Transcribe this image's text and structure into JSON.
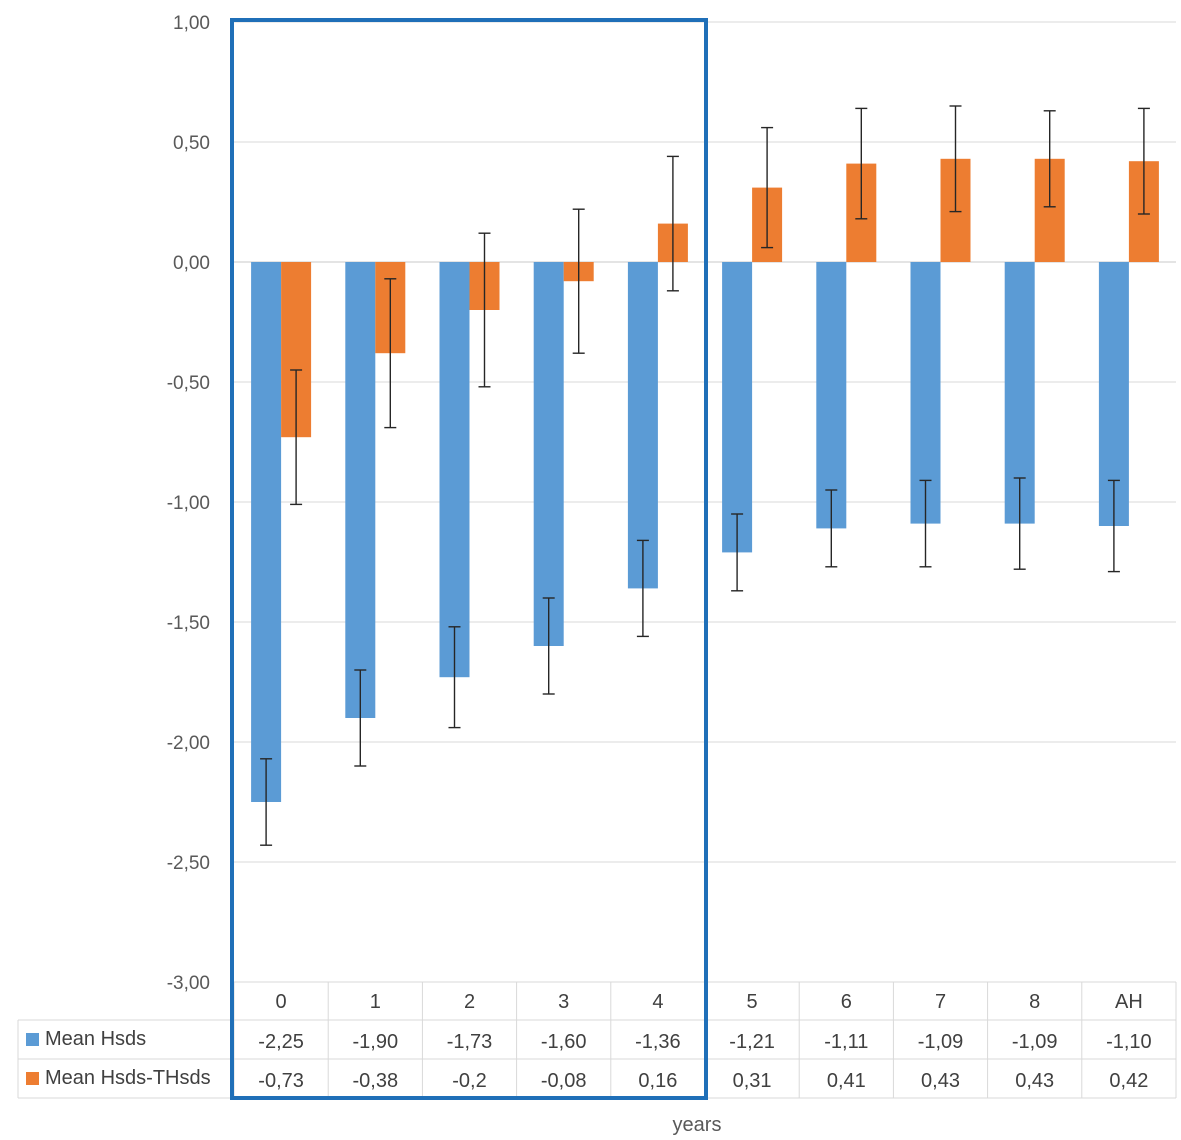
{
  "chart_data": {
    "type": "bar",
    "title": "",
    "xlabel": "years",
    "ylabel": "",
    "ylim": [
      -3.0,
      1.0
    ],
    "ytick_values": [
      1.0,
      0.5,
      0.0,
      -0.5,
      -1.0,
      -1.5,
      -2.0,
      -2.5,
      -3.0
    ],
    "ytick_labels": [
      "1,00",
      "0,50",
      "0,00",
      "-0,50",
      "-1,00",
      "-1,50",
      "-2,00",
      "-2,50",
      "-3,00"
    ],
    "categories": [
      "0",
      "1",
      "2",
      "3",
      "4",
      "5",
      "6",
      "7",
      "8",
      "AH"
    ],
    "highlight_categories": [
      "0",
      "1",
      "2",
      "3",
      "4"
    ],
    "series": [
      {
        "name": "Mean Hsds",
        "color": "#5b9bd5",
        "values": [
          -2.25,
          -1.9,
          -1.73,
          -1.6,
          -1.36,
          -1.21,
          -1.11,
          -1.09,
          -1.09,
          -1.1
        ],
        "labels": [
          "-2,25",
          "-1,90",
          "-1,73",
          "-1,60",
          "-1,36",
          "-1,21",
          "-1,11",
          "-1,09",
          "-1,09",
          "-1,10"
        ],
        "errors": [
          0.18,
          0.2,
          0.21,
          0.2,
          0.2,
          0.16,
          0.16,
          0.18,
          0.19,
          0.19
        ]
      },
      {
        "name": "Mean Hsds-THsds",
        "color": "#ed7d31",
        "values": [
          -0.73,
          -0.38,
          -0.2,
          -0.08,
          0.16,
          0.31,
          0.41,
          0.43,
          0.43,
          0.42
        ],
        "labels": [
          "-0,73",
          "-0,38",
          "-0,2",
          "-0,08",
          "0,16",
          "0,31",
          "0,41",
          "0,43",
          "0,43",
          "0,42"
        ],
        "errors": [
          0.28,
          0.31,
          0.32,
          0.3,
          0.28,
          0.25,
          0.23,
          0.22,
          0.2,
          0.22
        ]
      }
    ],
    "grid": true,
    "highlight_color": "#1f6fb8"
  }
}
